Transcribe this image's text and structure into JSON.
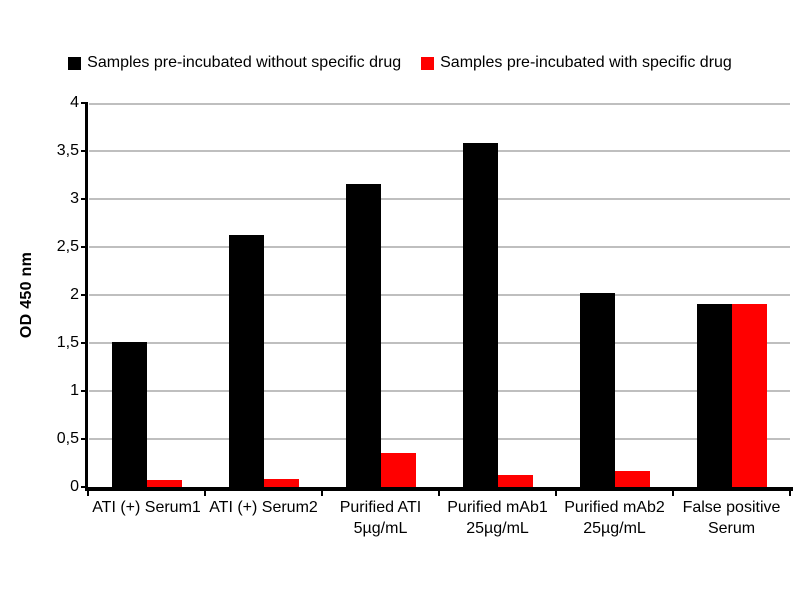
{
  "chart_data": {
    "type": "bar",
    "title": "",
    "ylabel": "OD 450 nm",
    "xlabel": "",
    "ylim": [
      0,
      4
    ],
    "grid": true,
    "gridline_color": "#BFBFBF",
    "axis_color": "#000000",
    "legend_position": "top",
    "yticks": [
      {
        "v": 0,
        "label": "0"
      },
      {
        "v": 0.5,
        "label": "0,5"
      },
      {
        "v": 1,
        "label": "1"
      },
      {
        "v": 1.5,
        "label": "1,5"
      },
      {
        "v": 2,
        "label": "2"
      },
      {
        "v": 2.5,
        "label": "2,5"
      },
      {
        "v": 3,
        "label": "3"
      },
      {
        "v": 3.5,
        "label": "3,5"
      },
      {
        "v": 4,
        "label": "4"
      }
    ],
    "categories": [
      {
        "lines": [
          "ATI (+) Serum1"
        ]
      },
      {
        "lines": [
          "ATI (+) Serum2"
        ]
      },
      {
        "lines": [
          "Purified ATI",
          "5µg/mL"
        ]
      },
      {
        "lines": [
          "Purified mAb1",
          "25µg/mL"
        ]
      },
      {
        "lines": [
          "Purified mAb2",
          "25µg/mL"
        ]
      },
      {
        "lines": [
          "False positive",
          "Serum"
        ]
      }
    ],
    "series": [
      {
        "name": "Samples pre-incubated without specific drug",
        "color": "#000000",
        "values": [
          1.51,
          2.63,
          3.16,
          3.58,
          2.02,
          1.91
        ]
      },
      {
        "name": "Samples pre-incubated with specific drug",
        "color": "#FF0000",
        "values": [
          0.07,
          0.08,
          0.35,
          0.13,
          0.17,
          1.91
        ]
      }
    ]
  }
}
